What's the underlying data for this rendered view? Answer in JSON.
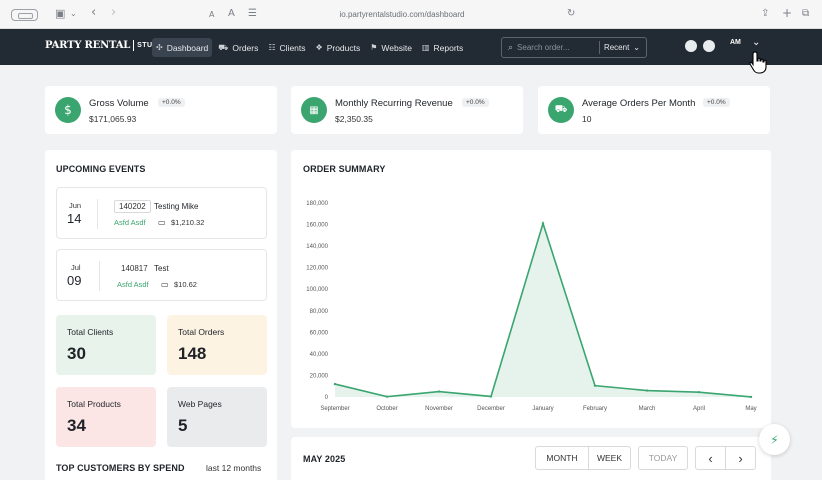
{
  "browser": {
    "url": "io.partyrentalstudio.com/dashboard",
    "text_size_small": "A",
    "text_size_large": "A"
  },
  "nav": {
    "brand": "PARTY RENTAL",
    "brand_suffix": "STUDIO",
    "items": [
      {
        "label": "Dashboard",
        "icon": "dashboard-icon",
        "glyph": "✣"
      },
      {
        "label": "Orders",
        "icon": "cart-icon",
        "glyph": "⛟"
      },
      {
        "label": "Clients",
        "icon": "users-icon",
        "glyph": "☷"
      },
      {
        "label": "Products",
        "icon": "box-icon",
        "glyph": "❖"
      },
      {
        "label": "Website",
        "icon": "flag-icon",
        "glyph": "⚑"
      },
      {
        "label": "Reports",
        "icon": "report-icon",
        "glyph": "▥"
      }
    ],
    "search_placeholder": "Search order...",
    "search_scope": "Recent",
    "avatar_initials": "AM"
  },
  "stats": [
    {
      "title": "Gross Volume",
      "change": "+0.0%",
      "value": "$171,065.93",
      "icon": "dollar-icon",
      "glyph": "$"
    },
    {
      "title": "Monthly Recurring Revenue",
      "change": "+0.0%",
      "value": "$2,350.35",
      "icon": "calendar-icon",
      "glyph": "▦"
    },
    {
      "title": "Average Orders Per Month",
      "change": "+0.0%",
      "value": "10",
      "icon": "cart-icon",
      "glyph": "⛟"
    }
  ],
  "events": {
    "title": "UPCOMING EVENTS",
    "items": [
      {
        "month": "Jun",
        "day": "14",
        "order": "140202",
        "name": "Testing Mike",
        "client": "Asfd Asdf",
        "amount": "$1,210.32"
      },
      {
        "month": "Jul",
        "day": "09",
        "order": "140817",
        "name": "Test",
        "client": "Asfd Asdf",
        "amount": "$10.62"
      }
    ]
  },
  "tiles": [
    {
      "label": "Total Clients",
      "value": "30",
      "color": "#e8f3ec"
    },
    {
      "label": "Total Orders",
      "value": "148",
      "color": "#fdf3e3"
    },
    {
      "label": "Total Products",
      "value": "34",
      "color": "#fbe5e5"
    },
    {
      "label": "Web Pages",
      "value": "5",
      "color": "#eaebec"
    }
  ],
  "top_customers": {
    "title": "TOP CUSTOMERS BY SPEND",
    "period": "last 12 months"
  },
  "order_summary": {
    "title": "ORDER SUMMARY"
  },
  "chart_data": {
    "type": "area",
    "title": "ORDER SUMMARY",
    "categories": [
      "September",
      "October",
      "November",
      "December",
      "January",
      "February",
      "March",
      "April",
      "May"
    ],
    "values": [
      12000,
      300,
      5000,
      500,
      161000,
      10500,
      6000,
      4500,
      100
    ],
    "yticks": [
      "180,000",
      "160,000",
      "140,000",
      "120,000",
      "100,000",
      "80,000",
      "60,000",
      "40,000",
      "20,000",
      "0"
    ],
    "ylim": [
      0,
      180000
    ],
    "line_color": "#3aa56f",
    "fill_color": "#e6f3ec"
  },
  "calendar": {
    "month_label": "MAY 2025",
    "view_month": "MONTH",
    "view_week": "WEEK",
    "today": "TODAY",
    "prev": "‹",
    "next": "›"
  }
}
